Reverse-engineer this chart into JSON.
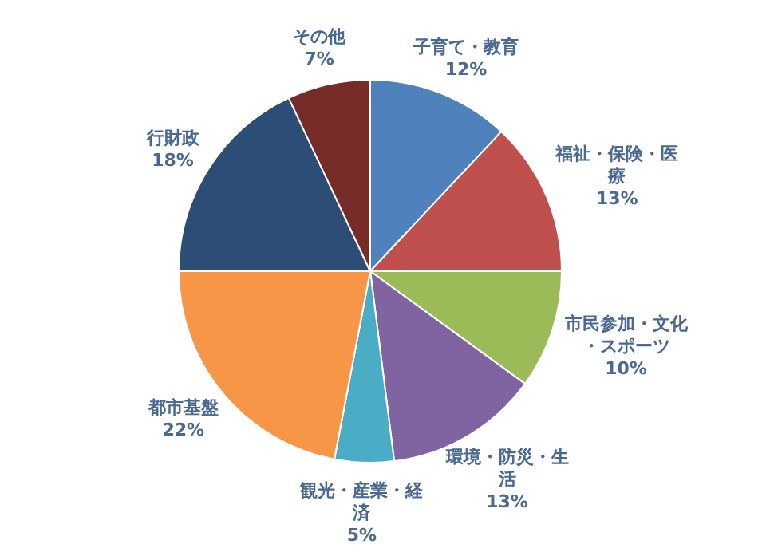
{
  "chart_data": {
    "type": "pie",
    "categories": [
      "子育て・教育",
      "福祉・保険・医療",
      "市民参加・文化・スポーツ",
      "環境・防災・生活",
      "観光・産業・経済",
      "都市基盤",
      "行財政",
      "その他"
    ],
    "values": [
      12,
      13,
      10,
      13,
      5,
      22,
      18,
      7
    ],
    "colors": [
      "#4f81bd",
      "#c0504d",
      "#9bbb59",
      "#8064a2",
      "#4bacc6",
      "#f79646",
      "#2c4d75",
      "#772c2a"
    ],
    "value_labels": [
      "12%",
      "13%",
      "10%",
      "13%",
      "5%",
      "22%",
      "18%",
      "7%"
    ]
  }
}
